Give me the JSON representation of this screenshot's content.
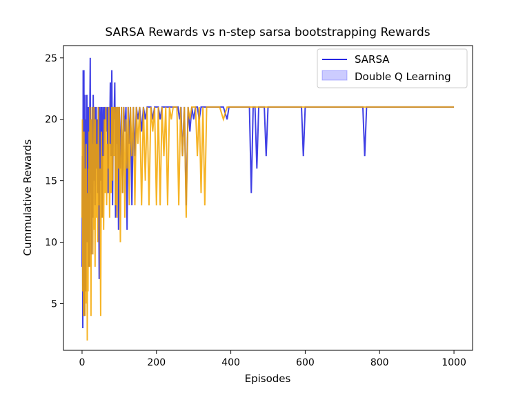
{
  "chart_data": {
    "type": "line",
    "title": "SARSA Rewards vs n-step sarsa bootstrapping Rewards",
    "xlabel": "Episodes",
    "ylabel": "Cummulative Rewards",
    "xlim": [
      -50,
      1050
    ],
    "ylim": [
      1.2,
      26
    ],
    "xticks": [
      0,
      200,
      400,
      600,
      800,
      1000
    ],
    "yticks": [
      5,
      10,
      15,
      20,
      25
    ],
    "grid": false,
    "legend_position": "top-right",
    "legend": [
      {
        "label": "SARSA",
        "kind": "line",
        "color": "#0000dd"
      },
      {
        "label": "Double Q Learning",
        "kind": "patch",
        "color": "#0000ff"
      }
    ],
    "series": [
      {
        "name": "SARSA",
        "color": "#1f1fe0",
        "opacity": 0.85,
        "x": [
          0,
          1,
          2,
          3,
          4,
          5,
          6,
          7,
          8,
          9,
          10,
          11,
          12,
          13,
          14,
          15,
          16,
          17,
          18,
          19,
          20,
          21,
          22,
          23,
          24,
          25,
          26,
          27,
          28,
          29,
          30,
          31,
          32,
          33,
          34,
          35,
          36,
          37,
          38,
          39,
          40,
          42,
          44,
          46,
          48,
          50,
          52,
          54,
          56,
          58,
          60,
          62,
          64,
          66,
          68,
          70,
          72,
          74,
          76,
          78,
          80,
          82,
          84,
          86,
          88,
          90,
          92,
          94,
          96,
          98,
          100,
          103,
          106,
          109,
          112,
          115,
          118,
          121,
          124,
          127,
          130,
          134,
          138,
          142,
          146,
          150,
          155,
          160,
          165,
          170,
          175,
          180,
          185,
          190,
          195,
          200,
          205,
          210,
          215,
          220,
          225,
          230,
          240,
          250,
          258,
          262,
          266,
          270,
          275,
          280,
          285,
          290,
          295,
          300,
          305,
          310,
          315,
          320,
          325,
          330,
          335,
          340,
          345,
          350,
          355,
          360,
          370,
          380,
          390,
          395,
          400,
          405,
          450,
          455,
          460,
          465,
          470,
          475,
          490,
          495,
          500,
          585,
          590,
          595,
          600,
          750,
          755,
          760,
          765,
          1000
        ],
        "y": [
          8,
          17,
          3,
          24,
          9,
          24,
          4,
          14,
          22,
          15,
          6,
          20,
          13,
          22,
          10,
          21,
          19,
          8,
          21,
          15,
          8,
          21,
          25,
          14,
          20,
          9,
          20,
          16,
          21,
          12,
          22,
          17,
          21,
          15,
          20,
          13,
          21,
          18,
          21,
          16,
          20,
          14,
          21,
          7,
          21,
          15,
          21,
          12,
          21,
          17,
          21,
          20,
          21,
          19,
          21,
          14,
          21,
          18,
          23,
          17,
          24,
          13,
          21,
          20,
          23,
          12,
          21,
          18,
          21,
          11,
          21,
          16,
          21,
          14,
          21,
          19,
          21,
          11,
          21,
          18,
          21,
          13,
          21,
          17,
          21,
          20,
          21,
          19,
          21,
          20,
          21,
          21,
          21,
          20,
          21,
          21,
          21,
          20,
          21,
          21,
          21,
          21,
          21,
          21,
          21,
          20,
          21,
          17,
          21,
          13,
          21,
          19,
          21,
          20,
          21,
          21,
          20,
          21,
          21,
          21,
          21,
          21,
          21,
          21,
          21,
          21,
          21,
          21,
          20,
          21,
          21,
          21,
          21,
          14,
          21,
          21,
          16,
          21,
          21,
          17,
          21,
          21,
          21,
          17,
          21,
          21,
          21,
          17,
          21,
          21
        ]
      },
      {
        "name": "",
        "color": "#f5a700",
        "opacity": 0.85,
        "x": [
          0,
          1,
          2,
          3,
          4,
          5,
          6,
          7,
          8,
          9,
          10,
          11,
          12,
          13,
          14,
          15,
          16,
          17,
          18,
          19,
          20,
          21,
          22,
          23,
          24,
          25,
          26,
          27,
          28,
          29,
          30,
          31,
          32,
          33,
          34,
          35,
          36,
          37,
          38,
          39,
          40,
          42,
          44,
          46,
          48,
          50,
          52,
          54,
          56,
          58,
          60,
          62,
          64,
          66,
          68,
          70,
          72,
          74,
          76,
          78,
          80,
          82,
          84,
          86,
          88,
          90,
          92,
          94,
          96,
          98,
          100,
          103,
          106,
          109,
          112,
          115,
          118,
          121,
          124,
          127,
          130,
          134,
          138,
          142,
          146,
          150,
          155,
          160,
          165,
          170,
          175,
          180,
          185,
          190,
          195,
          200,
          205,
          210,
          215,
          220,
          225,
          230,
          235,
          240,
          245,
          250,
          255,
          260,
          265,
          270,
          275,
          280,
          285,
          290,
          295,
          300,
          305,
          310,
          315,
          320,
          325,
          330,
          335,
          340,
          345,
          350,
          360,
          370,
          380,
          390,
          400,
          1000
        ],
        "y": [
          12,
          20,
          6,
          16,
          4,
          19,
          7,
          13,
          4,
          16,
          5,
          18,
          9,
          14,
          2,
          12,
          6,
          16,
          10,
          19,
          8,
          21,
          14,
          18,
          4,
          20,
          12,
          21,
          16,
          9,
          18,
          13,
          21,
          11,
          15,
          8,
          20,
          14,
          17,
          12,
          18,
          10,
          21,
          13,
          16,
          4,
          19,
          12,
          17,
          11,
          20,
          14,
          21,
          13,
          18,
          16,
          21,
          12,
          18,
          14,
          21,
          15,
          21,
          17,
          21,
          13,
          21,
          12,
          21,
          16,
          21,
          10,
          21,
          14,
          21,
          12,
          20,
          16,
          21,
          13,
          21,
          17,
          21,
          13,
          21,
          18,
          21,
          13,
          21,
          15,
          21,
          13,
          21,
          19,
          21,
          13,
          21,
          13,
          21,
          17,
          21,
          13,
          21,
          20,
          21,
          21,
          21,
          13,
          21,
          17,
          21,
          12,
          21,
          20,
          21,
          21,
          21,
          17,
          21,
          14,
          21,
          13,
          21,
          21,
          21,
          21,
          21,
          21,
          20,
          21,
          21,
          21
        ]
      }
    ]
  }
}
